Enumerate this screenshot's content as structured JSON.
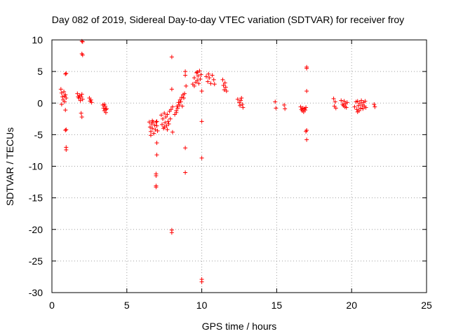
{
  "chart_data": {
    "type": "scatter",
    "title": "Day 082 of 2019, Sidereal Day-to-day VTEC variation (SDTVAR) for receiver froy",
    "xlabel": "GPS time / hours",
    "ylabel": "SDTVAR / TECUs",
    "xlim": [
      0,
      25
    ],
    "ylim": [
      -30,
      10
    ],
    "xticks": [
      0,
      5,
      10,
      15,
      20,
      25
    ],
    "yticks": [
      -30,
      -25,
      -20,
      -15,
      -10,
      -5,
      0,
      5,
      10
    ],
    "grid": true,
    "marker": "plus",
    "color": "#ff0000",
    "series": [
      {
        "name": "SDTVAR",
        "points": [
          [
            0.6,
            2.2
          ],
          [
            0.65,
            1.6
          ],
          [
            0.7,
            1.0
          ],
          [
            0.75,
            0.5
          ],
          [
            0.8,
            1.8
          ],
          [
            0.85,
            0.2
          ],
          [
            0.9,
            1.3
          ],
          [
            0.95,
            0.8
          ],
          [
            0.65,
            -0.2
          ],
          [
            0.85,
            1.1
          ],
          [
            0.9,
            4.6
          ],
          [
            0.95,
            4.7
          ],
          [
            0.9,
            -1.1
          ],
          [
            0.9,
            -4.3
          ],
          [
            0.95,
            -4.2
          ],
          [
            0.95,
            -7.0
          ],
          [
            0.95,
            -7.4
          ],
          [
            1.7,
            1.5
          ],
          [
            1.8,
            0.8
          ],
          [
            1.85,
            1.2
          ],
          [
            1.9,
            0.4
          ],
          [
            1.95,
            1.0
          ],
          [
            2.0,
            1.4
          ],
          [
            2.05,
            0.6
          ],
          [
            1.75,
            1.0
          ],
          [
            2.0,
            9.8
          ],
          [
            2.05,
            9.7
          ],
          [
            2.0,
            7.8
          ],
          [
            2.05,
            7.6
          ],
          [
            1.95,
            -1.6
          ],
          [
            2.0,
            -2.2
          ],
          [
            2.5,
            0.8
          ],
          [
            2.55,
            0.3
          ],
          [
            2.6,
            0.5
          ],
          [
            2.65,
            0.1
          ],
          [
            3.4,
            -0.3
          ],
          [
            3.45,
            -0.8
          ],
          [
            3.5,
            -1.2
          ],
          [
            3.55,
            -0.5
          ],
          [
            3.6,
            -1.5
          ],
          [
            3.65,
            -0.9
          ],
          [
            3.5,
            -0.2
          ],
          [
            3.6,
            -1.0
          ],
          [
            6.5,
            -3.0
          ],
          [
            6.55,
            -3.8
          ],
          [
            6.6,
            -4.5
          ],
          [
            6.6,
            -5.1
          ],
          [
            6.65,
            -3.3
          ],
          [
            6.7,
            -4.0
          ],
          [
            6.75,
            -3.0
          ],
          [
            6.8,
            -4.8
          ],
          [
            6.85,
            -3.5
          ],
          [
            6.9,
            -4.2
          ],
          [
            6.95,
            -3.0
          ],
          [
            7.0,
            -3.6
          ],
          [
            7.05,
            -4.4
          ],
          [
            7.0,
            -2.9
          ],
          [
            6.7,
            -2.8
          ],
          [
            7.0,
            -6.3
          ],
          [
            7.0,
            -8.2
          ],
          [
            6.95,
            -11.2
          ],
          [
            6.95,
            -11.5
          ],
          [
            6.95,
            -13.1
          ],
          [
            6.95,
            -13.3
          ],
          [
            7.3,
            -1.9
          ],
          [
            7.35,
            -3.4
          ],
          [
            7.4,
            -2.5
          ],
          [
            7.45,
            -4.0
          ],
          [
            7.5,
            -1.6
          ],
          [
            7.55,
            -3.1
          ],
          [
            7.6,
            -2.2
          ],
          [
            7.65,
            -3.6
          ],
          [
            7.7,
            -1.8
          ],
          [
            7.75,
            -2.9
          ],
          [
            7.8,
            -3.3
          ],
          [
            7.85,
            -1.3
          ],
          [
            7.9,
            -2.5
          ],
          [
            7.95,
            -1.0
          ],
          [
            7.5,
            -3.8
          ],
          [
            7.7,
            -4.2
          ],
          [
            8.0,
            7.3
          ],
          [
            8.0,
            2.2
          ],
          [
            8.05,
            -4.6
          ],
          [
            8.0,
            -20.1
          ],
          [
            8.0,
            -20.5
          ],
          [
            8.05,
            -0.6
          ],
          [
            8.2,
            -1.8
          ],
          [
            8.3,
            -1.2
          ],
          [
            8.35,
            -0.5
          ],
          [
            8.4,
            -0.8
          ],
          [
            8.45,
            0.1
          ],
          [
            8.5,
            -0.3
          ],
          [
            8.55,
            0.5
          ],
          [
            8.6,
            0.2
          ],
          [
            8.65,
            0.9
          ],
          [
            8.7,
            -0.5
          ],
          [
            8.75,
            1.3
          ],
          [
            8.8,
            0.8
          ],
          [
            8.85,
            1.5
          ],
          [
            8.3,
            -1.5
          ],
          [
            8.9,
            5.0
          ],
          [
            8.9,
            4.4
          ],
          [
            8.95,
            2.7
          ],
          [
            8.9,
            -7.1
          ],
          [
            8.9,
            -11.0
          ],
          [
            9.4,
            3.0
          ],
          [
            9.5,
            4.0
          ],
          [
            9.6,
            3.3
          ],
          [
            9.65,
            4.8
          ],
          [
            9.7,
            3.6
          ],
          [
            9.75,
            4.3
          ],
          [
            9.8,
            3.1
          ],
          [
            9.85,
            5.1
          ],
          [
            9.9,
            3.8
          ],
          [
            9.95,
            4.5
          ],
          [
            9.5,
            2.7
          ],
          [
            9.7,
            4.9
          ],
          [
            10.0,
            1.9
          ],
          [
            10.0,
            -2.9
          ],
          [
            10.0,
            -8.7
          ],
          [
            10.0,
            -27.9
          ],
          [
            10.0,
            -28.3
          ],
          [
            10.3,
            4.2
          ],
          [
            10.4,
            3.4
          ],
          [
            10.5,
            4.0
          ],
          [
            10.6,
            3.1
          ],
          [
            10.7,
            4.4
          ],
          [
            10.8,
            3.7
          ],
          [
            10.85,
            3.0
          ],
          [
            10.45,
            4.6
          ],
          [
            11.4,
            3.7
          ],
          [
            11.45,
            2.8
          ],
          [
            11.5,
            2.1
          ],
          [
            11.55,
            3.2
          ],
          [
            11.6,
            2.5
          ],
          [
            11.65,
            1.9
          ],
          [
            12.4,
            0.6
          ],
          [
            12.5,
            0.1
          ],
          [
            12.55,
            -0.4
          ],
          [
            12.6,
            0.4
          ],
          [
            12.7,
            -0.2
          ],
          [
            12.75,
            -0.7
          ],
          [
            12.65,
            0.8
          ],
          [
            14.9,
            0.2
          ],
          [
            14.95,
            -0.8
          ],
          [
            15.5,
            -0.3
          ],
          [
            15.55,
            -0.9
          ],
          [
            16.6,
            -0.6
          ],
          [
            16.7,
            -1.2
          ],
          [
            16.75,
            -0.8
          ],
          [
            16.8,
            -1.4
          ],
          [
            16.85,
            -0.9
          ],
          [
            16.9,
            -1.1
          ],
          [
            16.95,
            -0.7
          ],
          [
            16.65,
            -1.0
          ],
          [
            17.0,
            5.7
          ],
          [
            17.0,
            5.5
          ],
          [
            17.0,
            1.9
          ],
          [
            17.0,
            -4.3
          ],
          [
            16.95,
            -4.5
          ],
          [
            17.0,
            -5.8
          ],
          [
            18.8,
            0.7
          ],
          [
            18.85,
            -0.5
          ],
          [
            18.9,
            0.2
          ],
          [
            18.95,
            -0.8
          ],
          [
            19.3,
            0.4
          ],
          [
            19.4,
            -0.2
          ],
          [
            19.5,
            0.3
          ],
          [
            19.55,
            -0.6
          ],
          [
            19.6,
            -0.1
          ],
          [
            19.65,
            -0.7
          ],
          [
            19.7,
            0.1
          ],
          [
            19.45,
            -0.4
          ],
          [
            20.2,
            -0.6
          ],
          [
            20.3,
            0.2
          ],
          [
            20.35,
            -1.0
          ],
          [
            20.4,
            0.3
          ],
          [
            20.45,
            -0.4
          ],
          [
            20.5,
            -1.2
          ],
          [
            20.55,
            0.0
          ],
          [
            20.6,
            -0.8
          ],
          [
            20.65,
            0.4
          ],
          [
            20.7,
            -0.3
          ],
          [
            20.75,
            -0.9
          ],
          [
            20.8,
            0.1
          ],
          [
            20.85,
            -0.5
          ],
          [
            20.9,
            0.3
          ],
          [
            20.95,
            -0.7
          ],
          [
            20.4,
            -1.4
          ],
          [
            21.5,
            -0.2
          ],
          [
            21.55,
            -0.6
          ]
        ]
      }
    ]
  }
}
